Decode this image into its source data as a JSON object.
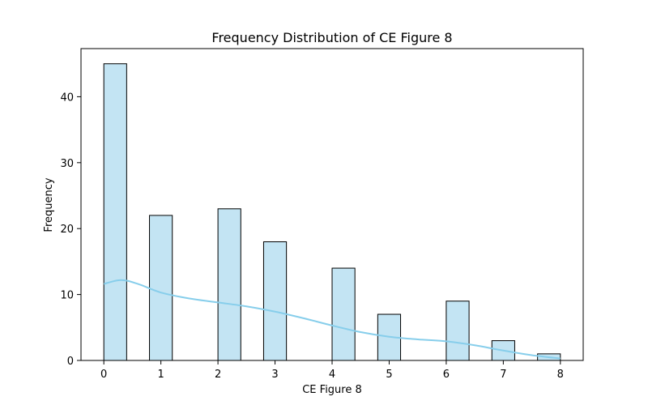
{
  "chart_data": {
    "type": "bar",
    "title": "Frequency Distribution of CE Figure 8",
    "xlabel": "CE Figure 8",
    "ylabel": "Frequency",
    "xlim": [
      -0.4,
      8.4
    ],
    "ylim": [
      0,
      47.3
    ],
    "bin_width": 0.4,
    "x_ticks": [
      0,
      1,
      2,
      3,
      4,
      5,
      6,
      7,
      8
    ],
    "y_ticks": [
      0,
      10,
      20,
      30,
      40
    ],
    "bins": [
      {
        "left": 0.0,
        "count": 45
      },
      {
        "left": 0.8,
        "count": 22
      },
      {
        "left": 2.0,
        "count": 23
      },
      {
        "left": 2.8,
        "count": 18
      },
      {
        "left": 4.0,
        "count": 14
      },
      {
        "left": 4.8,
        "count": 7
      },
      {
        "left": 6.0,
        "count": 9
      },
      {
        "left": 6.8,
        "count": 3
      },
      {
        "left": 7.6,
        "count": 1
      }
    ],
    "kde": {
      "x": [
        0.0,
        0.3,
        0.6,
        1.0,
        1.5,
        2.0,
        2.5,
        3.0,
        3.5,
        4.0,
        4.5,
        5.0,
        5.5,
        6.0,
        6.5,
        7.0,
        7.5,
        8.0
      ],
      "y": [
        11.6,
        12.2,
        11.6,
        10.3,
        9.4,
        8.8,
        8.2,
        7.4,
        6.4,
        5.3,
        4.3,
        3.6,
        3.2,
        2.9,
        2.3,
        1.5,
        0.8,
        0.3
      ]
    },
    "colors": {
      "bar_fill": "#c3e4f3",
      "bar_edge": "#000000",
      "kde_line": "#87ceeb"
    },
    "grid": false
  }
}
